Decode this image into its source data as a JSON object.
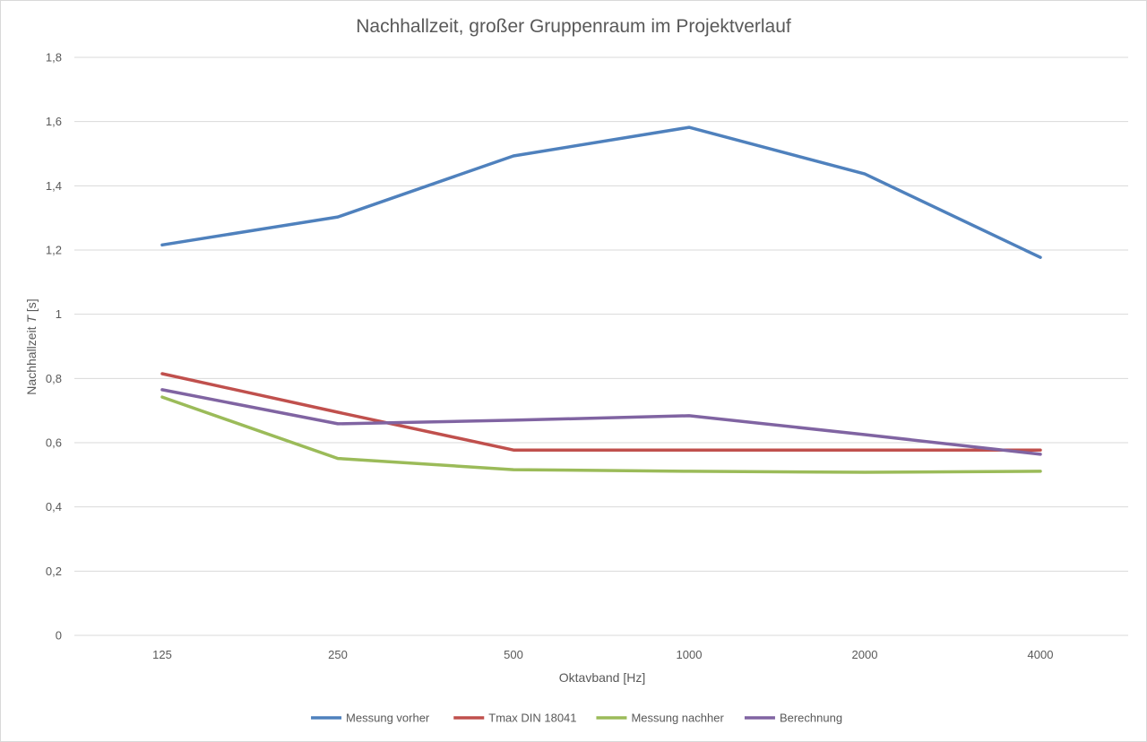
{
  "chart_data": {
    "type": "line",
    "title": "Nachhallzeit, großer Gruppenraum im Projektverlauf",
    "xlabel": "Oktavband [Hz]",
    "ylabel_prefix": "Nachhallzeit ",
    "ylabel_italic": "T",
    "ylabel_suffix": " [s]",
    "categories": [
      "125",
      "250",
      "500",
      "1000",
      "2000",
      "4000"
    ],
    "ylim": [
      0,
      1.8
    ],
    "yticks": [
      0,
      0.2,
      0.4,
      0.6,
      0.8,
      1.0,
      1.2,
      1.4,
      1.6,
      1.8
    ],
    "ytick_labels": [
      "0",
      "0,2",
      "0,4",
      "0,6",
      "0,8",
      "1",
      "1,2",
      "1,4",
      "1,6",
      "1,8"
    ],
    "grid": true,
    "legend_position": "bottom",
    "series": [
      {
        "name": "Messung vorher",
        "color": "#4f81bd",
        "values": [
          1.216,
          1.303,
          1.493,
          1.582,
          1.437,
          1.177
        ]
      },
      {
        "name": "Tmax DIN 18041",
        "color": "#c0504d",
        "values": [
          0.815,
          0.695,
          0.577,
          0.577,
          0.577,
          0.577
        ]
      },
      {
        "name": "Messung nachher",
        "color": "#9bbb59",
        "values": [
          0.742,
          0.551,
          0.516,
          0.511,
          0.508,
          0.511
        ]
      },
      {
        "name": "Berechnung",
        "color": "#8064a2",
        "values": [
          0.765,
          0.659,
          0.67,
          0.684,
          0.625,
          0.564
        ]
      }
    ]
  }
}
